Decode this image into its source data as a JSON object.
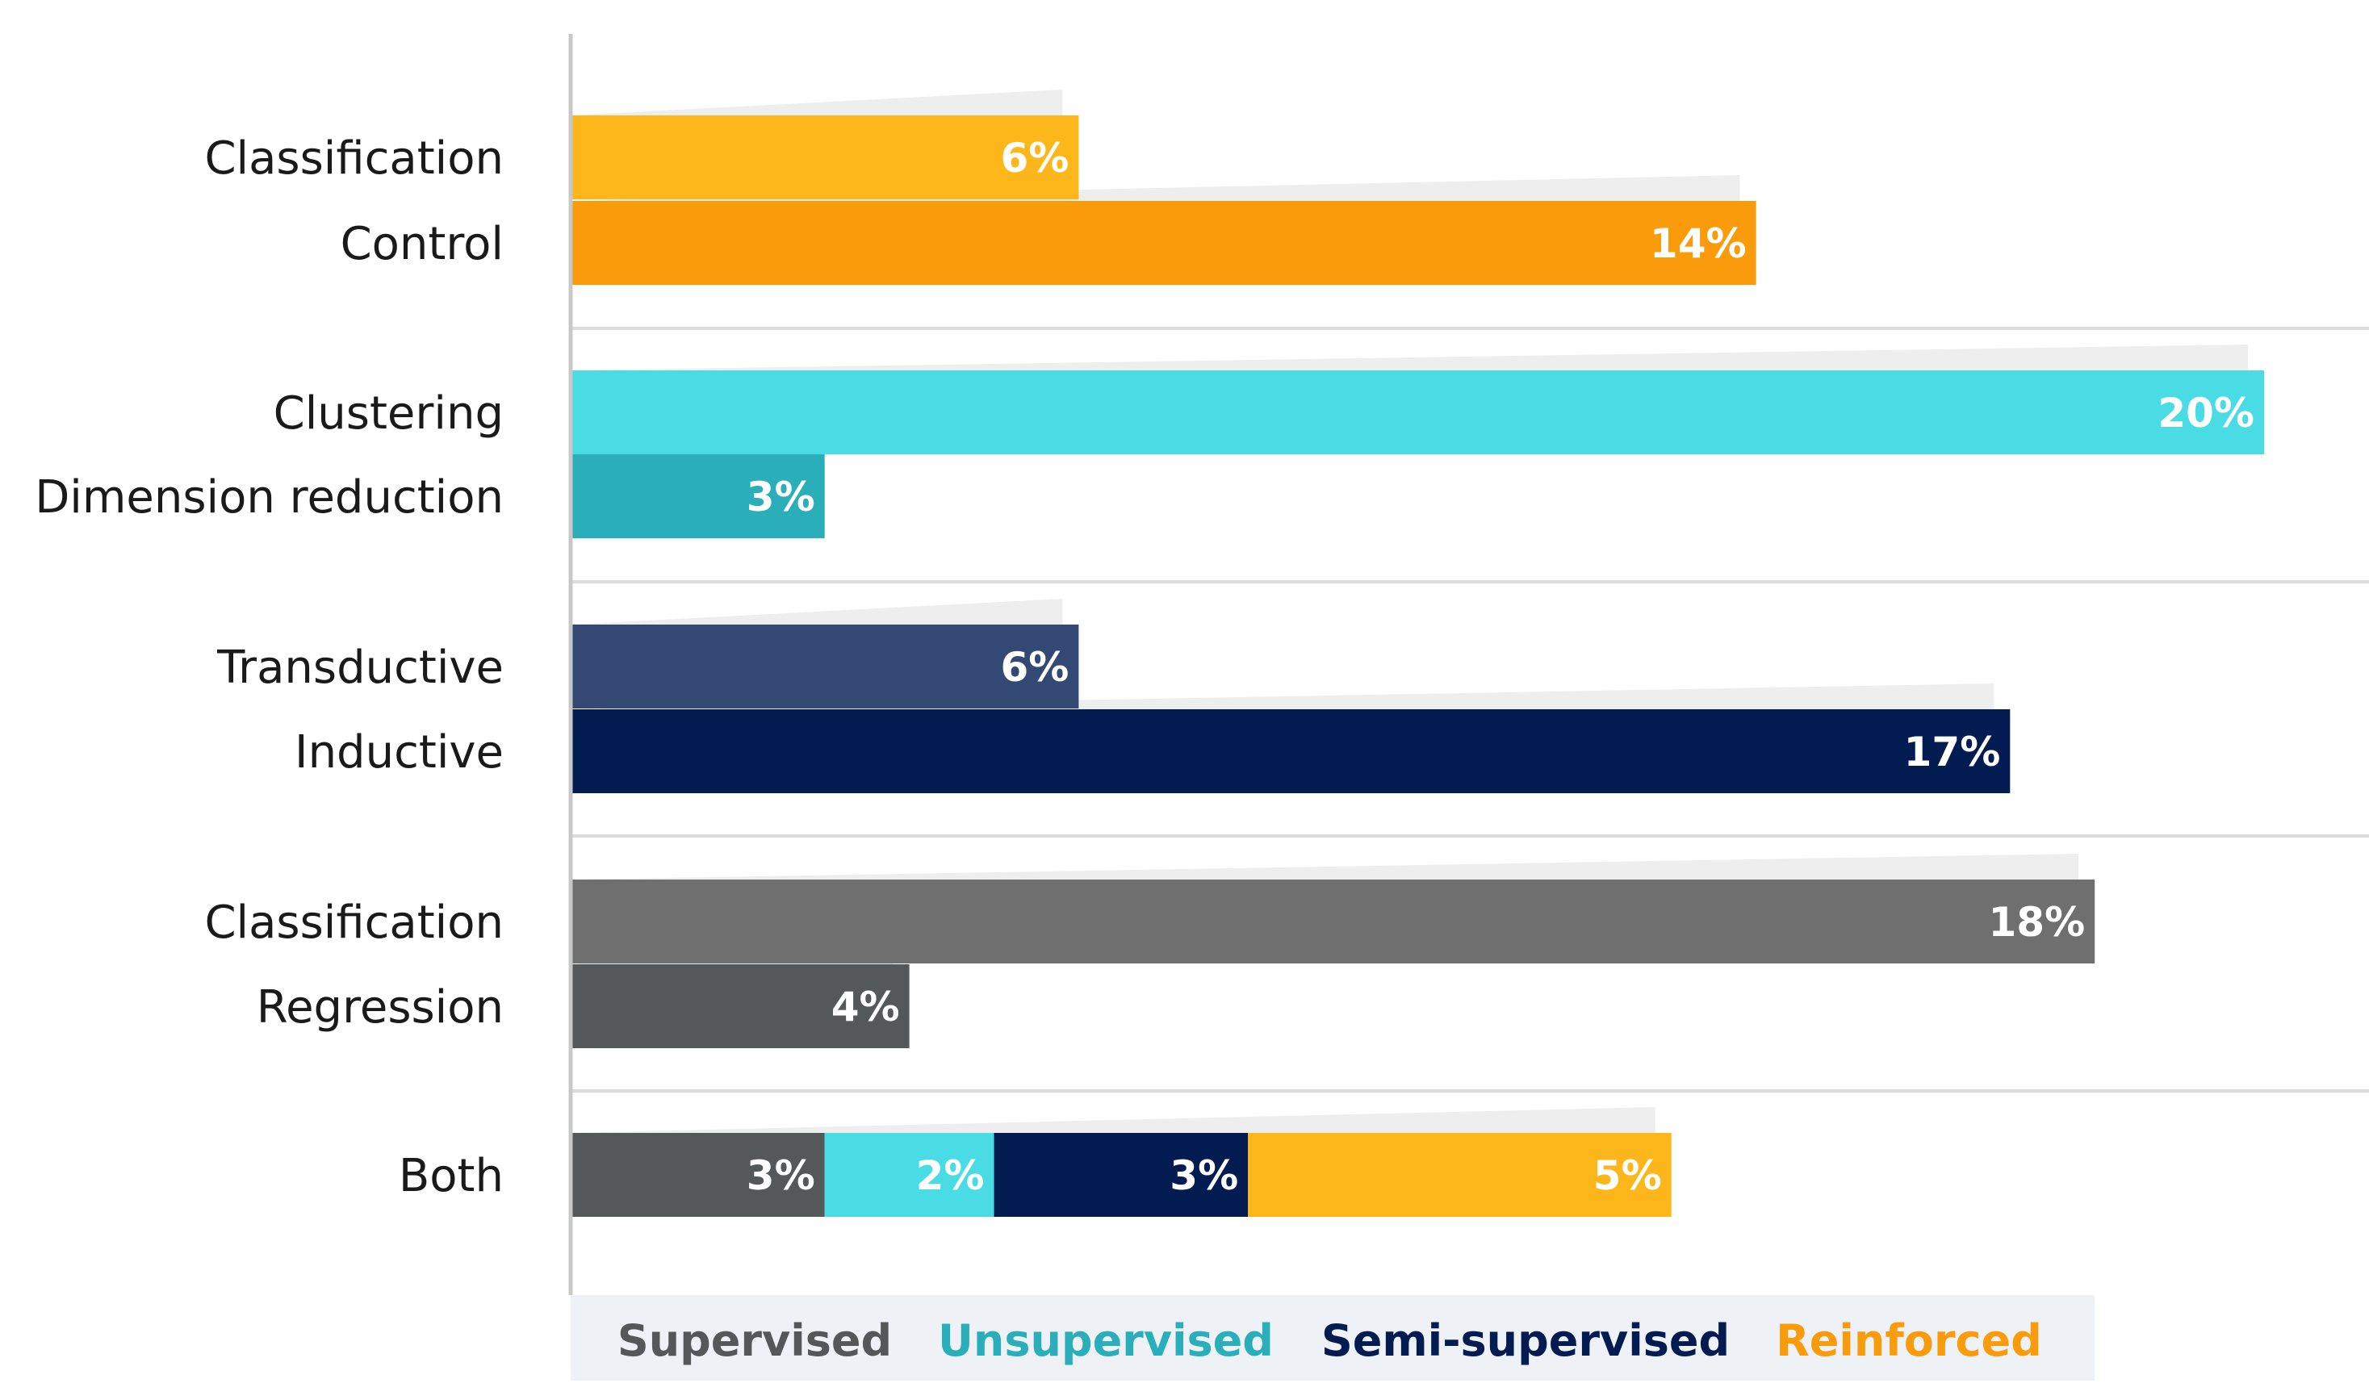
{
  "chart_data": {
    "type": "bar",
    "orientation": "horizontal",
    "stacked_last_group": true,
    "value_unit": "%",
    "x_range": [
      0,
      20
    ],
    "groups": [
      {
        "name": "Reinforced",
        "bars": [
          {
            "label": "Classification",
            "value": 6,
            "value_label": "6%",
            "color": "#FDB71A"
          },
          {
            "label": "Control",
            "value": 14,
            "value_label": "14%",
            "color": "#FA9B0C"
          }
        ]
      },
      {
        "name": "Unsupervised",
        "bars": [
          {
            "label": "Clustering",
            "value": 20,
            "value_label": "20%",
            "color": "#4ADCE4"
          },
          {
            "label": "Dimension reduction",
            "value": 3,
            "value_label": "3%",
            "color": "#2AAEBA"
          }
        ]
      },
      {
        "name": "Semi-supervised",
        "bars": [
          {
            "label": "Transductive",
            "value": 6,
            "value_label": "6%",
            "color": "#334872"
          },
          {
            "label": "Inductive",
            "value": 17,
            "value_label": "17%",
            "color": "#021B50"
          }
        ]
      },
      {
        "name": "Supervised",
        "bars": [
          {
            "label": "Classification",
            "value": 18,
            "value_label": "18%",
            "color": "#6F6F6F"
          },
          {
            "label": "Regression",
            "value": 4,
            "value_label": "4%",
            "color": "#545859"
          }
        ]
      },
      {
        "name": "Both",
        "stacked": true,
        "bars": [
          {
            "label": "Both",
            "segments": [
              {
                "series": "Supervised",
                "value": 3,
                "value_label": "3%",
                "color": "#545859"
              },
              {
                "series": "Unsupervised",
                "value": 2,
                "value_label": "2%",
                "color": "#4ADCE4"
              },
              {
                "series": "Semi-supervised",
                "value": 3,
                "value_label": "3%",
                "color": "#021B50"
              },
              {
                "series": "Reinforced",
                "value": 5,
                "value_label": "5%",
                "color": "#FDB71A"
              }
            ]
          }
        ]
      }
    ],
    "legend": [
      {
        "name": "Supervised",
        "color": "#545859"
      },
      {
        "name": "Unsupervised",
        "color": "#2AAEBA"
      },
      {
        "name": "Semi-supervised",
        "color": "#021B50"
      },
      {
        "name": "Reinforced",
        "color": "#FA9B0C"
      }
    ],
    "legend_position": "bottom"
  }
}
